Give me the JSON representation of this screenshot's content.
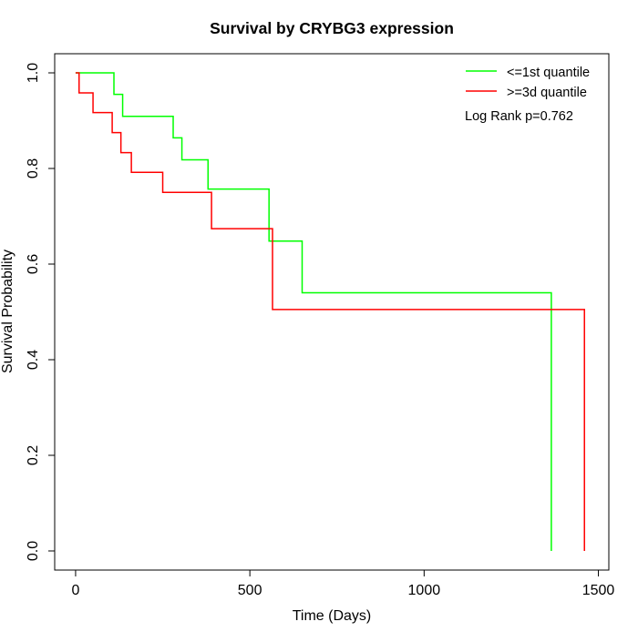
{
  "chart_data": {
    "type": "line",
    "step": true,
    "title": "Survival by CRYBG3 expression",
    "xlabel": "Time (Days)",
    "ylabel": "Survival Probability",
    "xlim": [
      -60,
      1530
    ],
    "ylim": [
      -0.04,
      1.04
    ],
    "x_ticks": [
      0,
      500,
      1000,
      1500
    ],
    "y_ticks": [
      0.0,
      0.2,
      0.4,
      0.6,
      0.8,
      1.0
    ],
    "x_tick_labels": [
      "0",
      "500",
      "1000",
      "1500"
    ],
    "y_tick_labels": [
      "0.0",
      "0.2",
      "0.4",
      "0.6",
      "0.8",
      "1.0"
    ],
    "grid": false,
    "legend_position": "top-right",
    "annotation": "Log Rank p=0.762",
    "series": [
      {
        "name": "<=1st quantile",
        "color": "#00ff00",
        "x": [
          0,
          110,
          135,
          280,
          305,
          380,
          555,
          650,
          1365,
          1365
        ],
        "y": [
          1.0,
          0.955,
          0.909,
          0.864,
          0.818,
          0.757,
          0.648,
          0.54,
          0.54,
          0.0
        ]
      },
      {
        "name": ">=3d quantile",
        "color": "#ff0000",
        "x": [
          0,
          10,
          50,
          105,
          130,
          160,
          250,
          390,
          565,
          1460,
          1460
        ],
        "y": [
          1.0,
          0.958,
          0.917,
          0.875,
          0.833,
          0.792,
          0.75,
          0.674,
          0.505,
          0.505,
          0.0
        ]
      }
    ]
  }
}
